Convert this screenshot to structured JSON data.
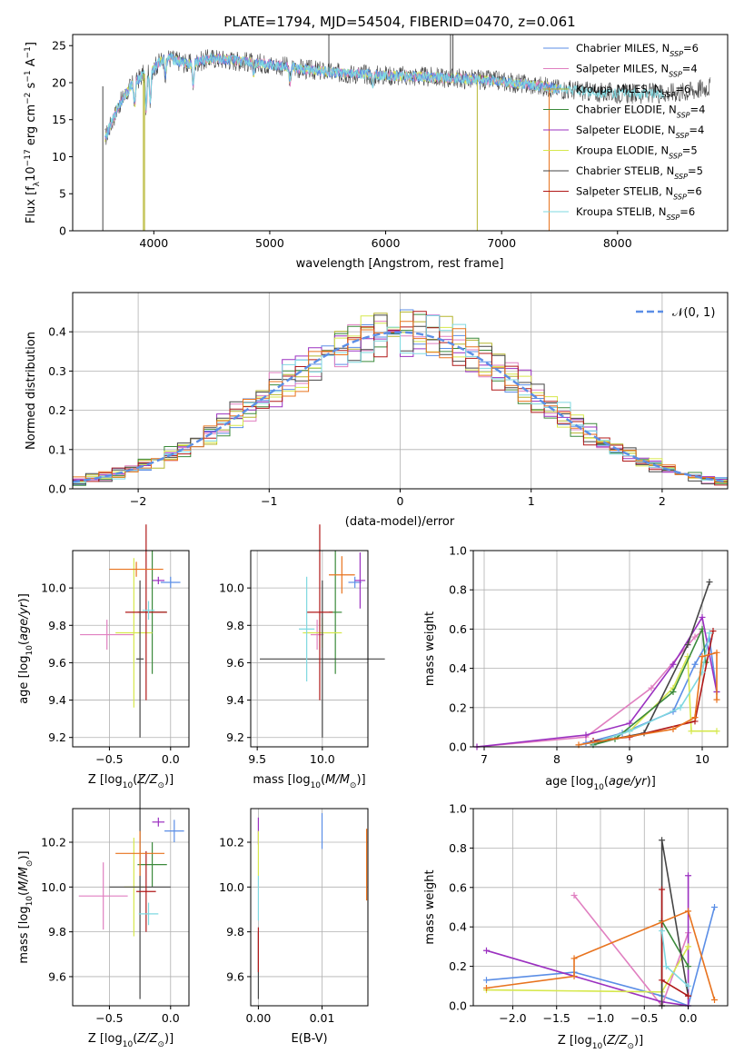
{
  "title": "PLATE=1794, MJD=54504, FIBERID=0470, z=0.061",
  "colors": {
    "Chabrier MILES": "#5b8ee6",
    "Salpeter MILES": "#e07fc0",
    "Kroupa MILES": "#b5b52e",
    "Chabrier ELODIE": "#3b8a3b",
    "Salpeter ELODIE": "#9b30c0",
    "Kroupa ELODIE": "#d6e84c",
    "Chabrier STELIB": "#454545",
    "Salpeter STELIB": "#b01818",
    "Kroupa STELIB": "#7fd8e0",
    "orange": "#e8731e"
  },
  "chart_data": [
    {
      "id": "spectrum",
      "type": "line",
      "title": "PLATE=1794, MJD=54504, FIBERID=0470, z=0.061",
      "xlabel": "wavelength [Angstrom, rest frame]",
      "ylabel": "Flux [f",
      "xlim": [
        3300,
        8950
      ],
      "ylim": [
        0,
        26.5
      ],
      "xticks": [
        4000,
        5000,
        6000,
        7000,
        8000
      ],
      "yticks": [
        0,
        5,
        10,
        15,
        20,
        25
      ],
      "grid": false,
      "legend_position": "top-right",
      "legend": [
        {
          "label": "Chabrier MILES, N",
          "n": "=6"
        },
        {
          "label": "Salpeter MILES, N",
          "n": "=4"
        },
        {
          "label": "Kroupa MILES, N",
          "n": "=6"
        },
        {
          "label": "Chabrier ELODIE, N",
          "n": "=4"
        },
        {
          "label": "Salpeter ELODIE, N",
          "n": "=4"
        },
        {
          "label": "Kroupa ELODIE, N",
          "n": "=5"
        },
        {
          "label": "Chabrier STELIB, N",
          "n": "=5"
        },
        {
          "label": "Salpeter STELIB, N",
          "n": "=6"
        },
        {
          "label": "Kroupa STELIB, N",
          "n": "=6"
        }
      ],
      "continuum": [
        [
          3580,
          12.5
        ],
        [
          3700,
          17.0
        ],
        [
          3800,
          19.5
        ],
        [
          3900,
          21.0
        ],
        [
          4000,
          22.0
        ],
        [
          4100,
          23.5
        ],
        [
          4300,
          22.5
        ],
        [
          4500,
          23.3
        ],
        [
          4700,
          23.0
        ],
        [
          5000,
          22.5
        ],
        [
          5300,
          21.8
        ],
        [
          5600,
          21.3
        ],
        [
          6000,
          21.0
        ],
        [
          6300,
          20.8
        ],
        [
          6600,
          20.6
        ],
        [
          7000,
          20.2
        ],
        [
          7200,
          19.8
        ],
        [
          7500,
          19.2
        ],
        [
          7800,
          18.7
        ],
        [
          8200,
          18.5
        ],
        [
          8600,
          18.8
        ],
        [
          8800,
          19.5
        ]
      ],
      "spikes": [
        [
          3560,
          0
        ],
        [
          3910,
          0
        ],
        [
          3920,
          0
        ],
        [
          5510,
          27
        ],
        [
          6560,
          27
        ],
        [
          6580,
          27
        ],
        [
          6790,
          0
        ],
        [
          7410,
          0
        ]
      ]
    },
    {
      "id": "residuals",
      "type": "histogram",
      "xlabel": "(data-model)/error",
      "ylabel": "Normed distribution",
      "xlim": [
        -2.5,
        2.5
      ],
      "ylim": [
        0,
        0.5
      ],
      "xticks": [
        -2,
        -1,
        0,
        1,
        2
      ],
      "yticks": [
        0.0,
        0.1,
        0.2,
        0.3,
        0.4
      ],
      "grid": true,
      "legend_position": "top-right",
      "reference_curve_label": "𝒩(0, 1)",
      "bin_width": 0.1
    },
    {
      "id": "age-vs-Z",
      "type": "errorbar",
      "xlabel": "Z [log",
      "ylabel": "age  [log",
      "xlim": [
        -0.8,
        0.15
      ],
      "ylim": [
        9.15,
        10.2
      ],
      "xticks": [
        -0.5,
        0.0
      ],
      "yticks": [
        9.2,
        9.4,
        9.6,
        9.8,
        10.0
      ],
      "points": [
        {
          "series": "Chabrier MILES",
          "x": 0.0,
          "y": 10.03,
          "xerr": 0.08,
          "yerr": 0.03
        },
        {
          "series": "Salpeter MILES",
          "x": -0.52,
          "y": 9.75,
          "xerr": 0.22,
          "yerr": 0.08
        },
        {
          "series": "Chabrier ELODIE",
          "x": -0.15,
          "y": 9.87,
          "xerr": 0.12,
          "yerr": 0.33
        },
        {
          "series": "Salpeter ELODIE",
          "x": -0.1,
          "y": 10.04,
          "xerr": 0.05,
          "yerr": 0.02
        },
        {
          "series": "Kroupa ELODIE",
          "x": -0.3,
          "y": 9.76,
          "xerr": 0.15,
          "yerr": 0.4
        },
        {
          "series": "Chabrier STELIB",
          "x": -0.25,
          "y": 9.62,
          "xerr": 0.03,
          "yerr": 0.42
        },
        {
          "series": "Salpeter STELIB",
          "x": -0.2,
          "y": 9.87,
          "xerr": 0.17,
          "yerr": 0.47
        },
        {
          "series": "Kroupa STELIB",
          "x": -0.18,
          "y": 9.88,
          "xerr": 0.05,
          "yerr": 0.05
        },
        {
          "series": "orange",
          "x": -0.28,
          "y": 10.1,
          "xerr": 0.22,
          "yerr": 0.04
        }
      ]
    },
    {
      "id": "age-vs-mass",
      "type": "errorbar",
      "xlabel": "mass [log",
      "ylabel": "",
      "xlim": [
        9.45,
        10.35
      ],
      "ylim": [
        9.15,
        10.2
      ],
      "xticks": [
        9.5,
        10.0
      ],
      "yticks": [
        9.2,
        9.4,
        9.6,
        9.8,
        10.0
      ],
      "points": [
        {
          "series": "Chabrier MILES",
          "x": 10.25,
          "y": 10.03,
          "xerr": 0.05,
          "yerr": 0.03
        },
        {
          "series": "Salpeter MILES",
          "x": 9.96,
          "y": 9.75,
          "xerr": 0.05,
          "yerr": 0.08
        },
        {
          "series": "Chabrier ELODIE",
          "x": 10.1,
          "y": 9.87,
          "xerr": 0.05,
          "yerr": 0.33
        },
        {
          "series": "Salpeter ELODIE",
          "x": 10.29,
          "y": 10.04,
          "xerr": 0.04,
          "yerr": 0.15
        },
        {
          "series": "Kroupa ELODIE",
          "x": 10.0,
          "y": 9.76,
          "xerr": 0.15,
          "yerr": 0.08
        },
        {
          "series": "Chabrier STELIB",
          "x": 10.0,
          "y": 9.62,
          "xerr": 0.48,
          "yerr": 0.42
        },
        {
          "series": "Salpeter STELIB",
          "x": 9.98,
          "y": 9.87,
          "xerr": 0.1,
          "yerr": 0.47
        },
        {
          "series": "Kroupa STELIB",
          "x": 9.88,
          "y": 9.78,
          "xerr": 0.06,
          "yerr": 0.28
        },
        {
          "series": "orange",
          "x": 10.15,
          "y": 10.07,
          "xerr": 0.1,
          "yerr": 0.1
        }
      ]
    },
    {
      "id": "weight-vs-age",
      "type": "line",
      "xlabel": "age  [log",
      "ylabel": "mass weight",
      "xlim": [
        6.85,
        10.35
      ],
      "ylim": [
        0,
        1.0
      ],
      "xticks": [
        7,
        8,
        9,
        10
      ],
      "yticks": [
        0.0,
        0.2,
        0.4,
        0.6,
        0.8,
        1.0
      ],
      "grid": true,
      "series": [
        {
          "series": "Chabrier MILES",
          "x": [
            8.4,
            8.9,
            9.6,
            9.9,
            10.1,
            10.2
          ],
          "y": [
            0.02,
            0.07,
            0.18,
            0.42,
            0.55,
            0.28
          ]
        },
        {
          "series": "Salpeter MILES",
          "x": [
            6.9,
            8.4,
            9.3,
            9.9,
            10.0
          ],
          "y": [
            0.0,
            0.05,
            0.3,
            0.56,
            0.59
          ]
        },
        {
          "series": "Kroupa ELODIE",
          "x": [
            8.5,
            9.0,
            9.6,
            9.8,
            9.85,
            10.2
          ],
          "y": [
            0.02,
            0.08,
            0.3,
            0.46,
            0.08,
            0.08
          ]
        },
        {
          "series": "Chabrier ELODIE",
          "x": [
            8.5,
            8.8,
            9.6,
            10.0,
            10.05
          ],
          "y": [
            0.01,
            0.04,
            0.28,
            0.6,
            0.43
          ]
        },
        {
          "series": "Salpeter ELODIE",
          "x": [
            6.9,
            8.4,
            9.0,
            9.6,
            10.0,
            10.2
          ],
          "y": [
            0.0,
            0.06,
            0.12,
            0.42,
            0.66,
            0.28
          ]
        },
        {
          "series": "Chabrier STELIB",
          "x": [
            8.5,
            9.2,
            9.8,
            10.1
          ],
          "y": [
            0.02,
            0.07,
            0.52,
            0.84
          ]
        },
        {
          "series": "Salpeter STELIB",
          "x": [
            8.5,
            9.0,
            9.9,
            10.15
          ],
          "y": [
            0.03,
            0.05,
            0.13,
            0.59
          ]
        },
        {
          "series": "Kroupa STELIB",
          "x": [
            8.5,
            9.0,
            9.7,
            10.0,
            10.1
          ],
          "y": [
            0.02,
            0.08,
            0.2,
            0.38,
            0.58
          ]
        },
        {
          "series": "orange",
          "x": [
            8.3,
            9.6,
            9.9,
            10.0,
            10.2,
            10.2
          ],
          "y": [
            0.01,
            0.09,
            0.15,
            0.46,
            0.48,
            0.24
          ]
        }
      ]
    },
    {
      "id": "mass-vs-Z",
      "type": "errorbar",
      "xlabel": "Z [log",
      "ylabel": "mass [log",
      "xlim": [
        -0.8,
        0.15
      ],
      "ylim": [
        9.47,
        10.35
      ],
      "xticks": [
        -0.5,
        0.0
      ],
      "yticks": [
        9.6,
        9.8,
        10.0,
        10.2
      ],
      "points": [
        {
          "series": "Chabrier MILES",
          "x": 0.03,
          "y": 10.25,
          "xerr": 0.08,
          "yerr": 0.05
        },
        {
          "series": "Salpeter MILES",
          "x": -0.55,
          "y": 9.96,
          "xerr": 0.2,
          "yerr": 0.15
        },
        {
          "series": "Chabrier ELODIE",
          "x": -0.15,
          "y": 10.1,
          "xerr": 0.12,
          "yerr": 0.1
        },
        {
          "series": "Salpeter ELODIE",
          "x": -0.1,
          "y": 10.29,
          "xerr": 0.05,
          "yerr": 0.02
        },
        {
          "series": "Kroupa ELODIE",
          "x": -0.3,
          "y": 10.0,
          "xerr": 0.08,
          "yerr": 0.22
        },
        {
          "series": "Chabrier STELIB",
          "x": -0.25,
          "y": 10.0,
          "xerr": 0.25,
          "yerr": 0.5
        },
        {
          "series": "Salpeter STELIB",
          "x": -0.2,
          "y": 9.98,
          "xerr": 0.08,
          "yerr": 0.18
        },
        {
          "series": "Kroupa STELIB",
          "x": -0.18,
          "y": 9.88,
          "xerr": 0.08,
          "yerr": 0.05
        },
        {
          "series": "orange",
          "x": -0.25,
          "y": 10.15,
          "xerr": 0.2,
          "yerr": 0.1
        }
      ]
    },
    {
      "id": "mass-vs-ebv",
      "type": "errorbar",
      "xlabel": "E(B-V)",
      "ylabel": "",
      "xlim": [
        -0.0012,
        0.0172
      ],
      "ylim": [
        9.47,
        10.35
      ],
      "xticks": [
        0.0,
        0.01
      ],
      "xtick_labels": [
        "0.00",
        "0.01"
      ],
      "yticks": [
        9.6,
        9.8,
        10.0,
        10.2
      ],
      "points": [
        {
          "series": "Chabrier MILES",
          "x": 0.01,
          "y": 10.25,
          "xerr": 0.0,
          "yerr": 0.08
        },
        {
          "series": "Salpeter ELODIE",
          "x": 0.0,
          "y": 10.25,
          "xerr": 0.0,
          "yerr": 0.06
        },
        {
          "series": "Kroupa ELODIE",
          "x": 0.0,
          "y": 10.15,
          "xerr": 0.0,
          "yerr": 0.1
        },
        {
          "series": "Chabrier STELIB",
          "x": 0.0,
          "y": 9.65,
          "xerr": 0.0,
          "yerr": 0.15
        },
        {
          "series": "Salpeter STELIB",
          "x": 0.0,
          "y": 9.72,
          "xerr": 0.0,
          "yerr": 0.1
        },
        {
          "series": "Kroupa STELIB",
          "x": 0.0,
          "y": 9.95,
          "xerr": 0.0,
          "yerr": 0.1
        },
        {
          "series": "orange",
          "x": 0.017,
          "y": 10.1,
          "xerr": 0.0,
          "yerr": 0.16
        }
      ]
    },
    {
      "id": "weight-vs-Z",
      "type": "line",
      "xlabel": "Z [log",
      "ylabel": "mass weight",
      "xlim": [
        -2.45,
        0.45
      ],
      "ylim": [
        0,
        1.0
      ],
      "xticks": [
        -2.0,
        -1.5,
        -1.0,
        -0.5,
        0.0
      ],
      "yticks": [
        0.0,
        0.2,
        0.4,
        0.6,
        0.8,
        1.0
      ],
      "grid": true,
      "series": [
        {
          "series": "Chabrier MILES",
          "x": [
            -2.3,
            -1.3,
            -0.3,
            0.0,
            0.3
          ],
          "y": [
            0.13,
            0.17,
            0.05,
            0.0,
            0.5
          ]
        },
        {
          "series": "Salpeter MILES",
          "x": [
            -1.3,
            -0.3,
            0.0
          ],
          "y": [
            0.56,
            0.0,
            0.37
          ]
        },
        {
          "series": "Salpeter ELODIE",
          "x": [
            -2.3,
            -0.3,
            0.0,
            0.0
          ],
          "y": [
            0.28,
            0.02,
            0.0,
            0.66
          ]
        },
        {
          "series": "Kroupa ELODIE",
          "x": [
            -2.3,
            -0.3,
            0.0
          ],
          "y": [
            0.08,
            0.07,
            0.3
          ]
        },
        {
          "series": "Chabrier ELODIE",
          "x": [
            -0.3,
            -0.3,
            0.0
          ],
          "y": [
            0.0,
            0.43,
            0.2
          ]
        },
        {
          "series": "Chabrier STELIB",
          "x": [
            -0.3,
            -0.3,
            0.0
          ],
          "y": [
            0.0,
            0.84,
            0.05
          ]
        },
        {
          "series": "Salpeter STELIB",
          "x": [
            -0.3,
            -0.3,
            0.0
          ],
          "y": [
            0.59,
            0.13,
            0.05
          ]
        },
        {
          "series": "Kroupa STELIB",
          "x": [
            -0.3,
            -0.25,
            0.0
          ],
          "y": [
            0.38,
            0.2,
            0.1
          ]
        },
        {
          "series": "orange",
          "x": [
            -2.3,
            -1.3,
            -1.3,
            0.0,
            0.3
          ],
          "y": [
            0.09,
            0.15,
            0.24,
            0.48,
            0.03
          ]
        }
      ]
    }
  ]
}
